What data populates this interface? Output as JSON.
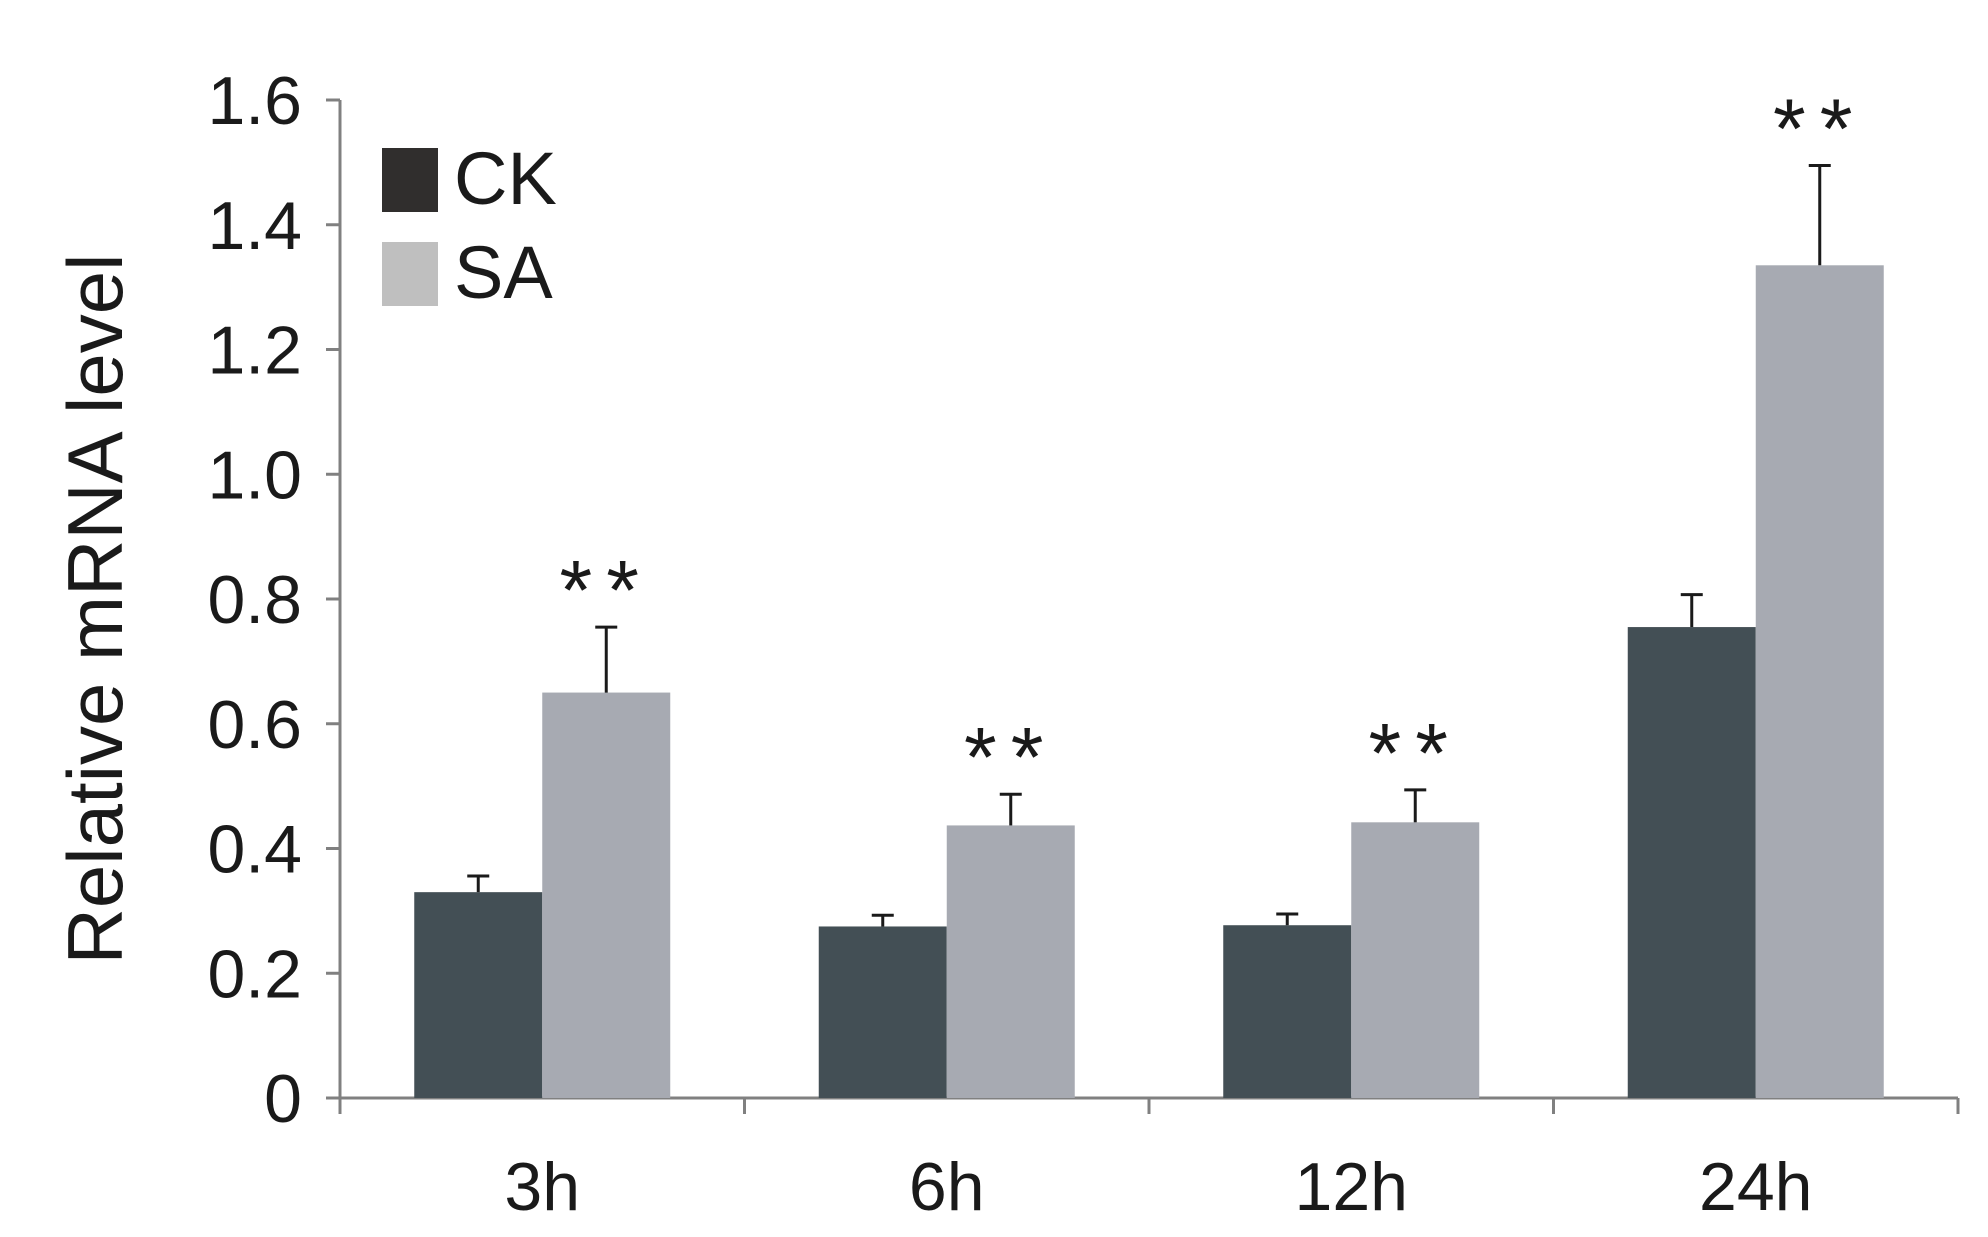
{
  "chart_data": {
    "type": "bar",
    "title": "",
    "xlabel": "",
    "ylabel": "Relative mRNA level",
    "categories": [
      "3h",
      "6h",
      "12h",
      "24h"
    ],
    "series": [
      {
        "name": "CK",
        "color": "#434f55",
        "legend_color": "#302e2d",
        "values": [
          0.33,
          0.275,
          0.277,
          0.755
        ],
        "errors": [
          0.026,
          0.018,
          0.018,
          0.052
        ]
      },
      {
        "name": "SA",
        "color": "#a7aab2",
        "legend_color": "#bfbfbf",
        "values": [
          0.65,
          0.437,
          0.442,
          1.335
        ],
        "errors": [
          0.105,
          0.05,
          0.052,
          0.16
        ]
      }
    ],
    "annotations": [
      {
        "category": "3h",
        "series": "SA",
        "text": "**"
      },
      {
        "category": "6h",
        "series": "SA",
        "text": "**"
      },
      {
        "category": "12h",
        "series": "SA",
        "text": "**"
      },
      {
        "category": "24h",
        "series": "SA",
        "text": "**"
      }
    ],
    "ylim": [
      0,
      1.6
    ],
    "yticks": [
      0,
      0.2,
      0.4,
      0.6,
      0.8,
      1.0,
      1.2,
      1.4,
      1.6
    ],
    "ytick_labels": [
      "0",
      "0.2",
      "0.4",
      "0.6",
      "0.8",
      "1.0",
      "1.2",
      "1.4",
      "1.6"
    ],
    "grid": false,
    "legend_position": "top-left"
  }
}
